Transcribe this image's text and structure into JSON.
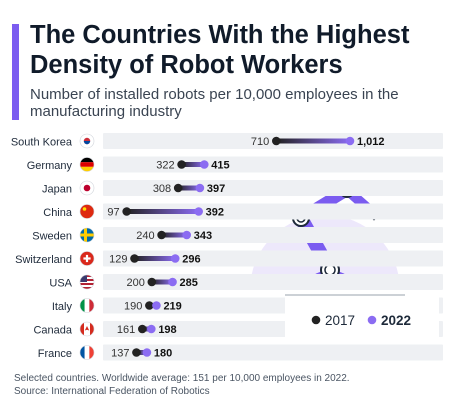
{
  "header": {
    "title": "The Countries With the Highest Density of Robot Workers",
    "subtitle": "Number of installed robots per 10,000 employees in the manufacturing industry"
  },
  "footnote": {
    "line1": "Selected countries. Worldwide average: 151 per 10,000 employees in 2022.",
    "line2": "Source: International Federation of Robotics"
  },
  "colors": {
    "accent": "#7b5cf0",
    "series_2017": "#222222",
    "series_2022": "#8b6cf2",
    "row_band": "#eef0f3",
    "illustration_bg": "#ede8fb"
  },
  "legend": {
    "items": [
      {
        "label": "2017",
        "color": "#222222"
      },
      {
        "label": "2022",
        "color": "#8b6cf2"
      }
    ],
    "position": "right"
  },
  "illustration": {
    "icon": "robot-arm-icon"
  },
  "chart_data": {
    "type": "dumbbell",
    "categories": [
      "South Korea",
      "Germany",
      "Japan",
      "China",
      "Sweden",
      "Switzerland",
      "USA",
      "Italy",
      "Canada",
      "France"
    ],
    "flags": [
      "kr",
      "de",
      "jp",
      "cn",
      "se",
      "ch",
      "us",
      "it",
      "ca",
      "fr"
    ],
    "series": [
      {
        "name": "2017",
        "values": [
          710,
          322,
          308,
          97,
          240,
          129,
          200,
          190,
          161,
          137
        ]
      },
      {
        "name": "2022",
        "values": [
          1012,
          415,
          397,
          392,
          343,
          296,
          285,
          219,
          198,
          180
        ]
      }
    ],
    "value_labels_2017": [
      "710",
      "322",
      "308",
      "97",
      "240",
      "129",
      "200",
      "190",
      "161",
      "137"
    ],
    "value_labels_2022": [
      "1,012",
      "415",
      "397",
      "392",
      "343",
      "296",
      "285",
      "219",
      "198",
      "180"
    ],
    "xlim": [
      0,
      1012
    ],
    "grid": false
  }
}
